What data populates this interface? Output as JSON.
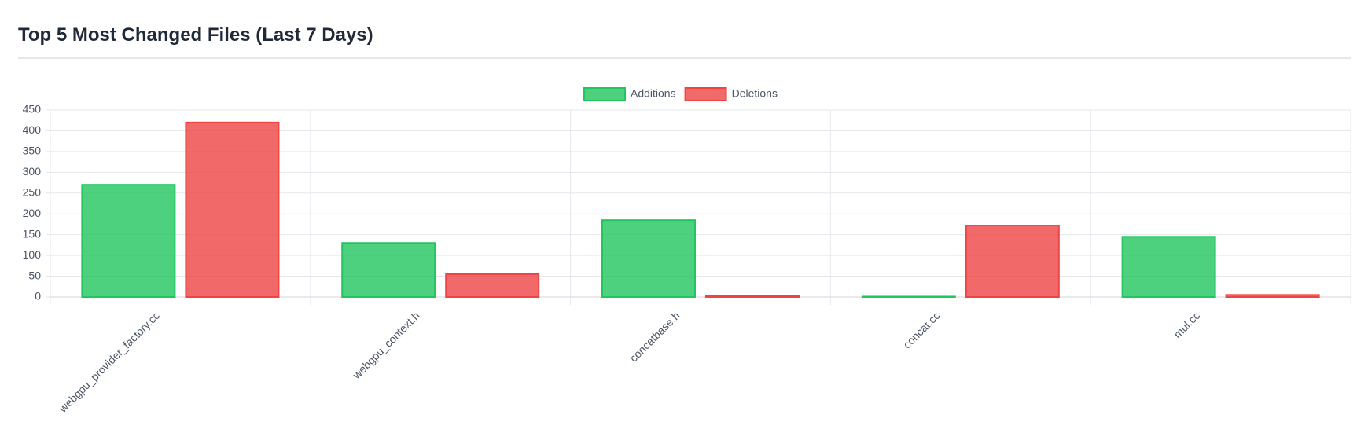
{
  "chart_data": {
    "type": "bar",
    "title": "Top 5 Most Changed Files (Last 7 Days)",
    "categories": [
      "webgpu_provider_factory.cc",
      "webgpu_context.h",
      "concatbase.h",
      "concat.cc",
      "mul.cc"
    ],
    "series": [
      {
        "name": "Additions",
        "color": "#22c55e",
        "values": [
          270,
          130,
          185,
          1,
          145
        ]
      },
      {
        "name": "Deletions",
        "color": "#ef4444",
        "values": [
          420,
          55,
          2,
          172,
          5
        ]
      }
    ],
    "ylim": [
      0,
      450
    ],
    "yticks": [
      0,
      50,
      100,
      150,
      200,
      250,
      300,
      350,
      400,
      450
    ],
    "grid": true,
    "legend": "top"
  }
}
